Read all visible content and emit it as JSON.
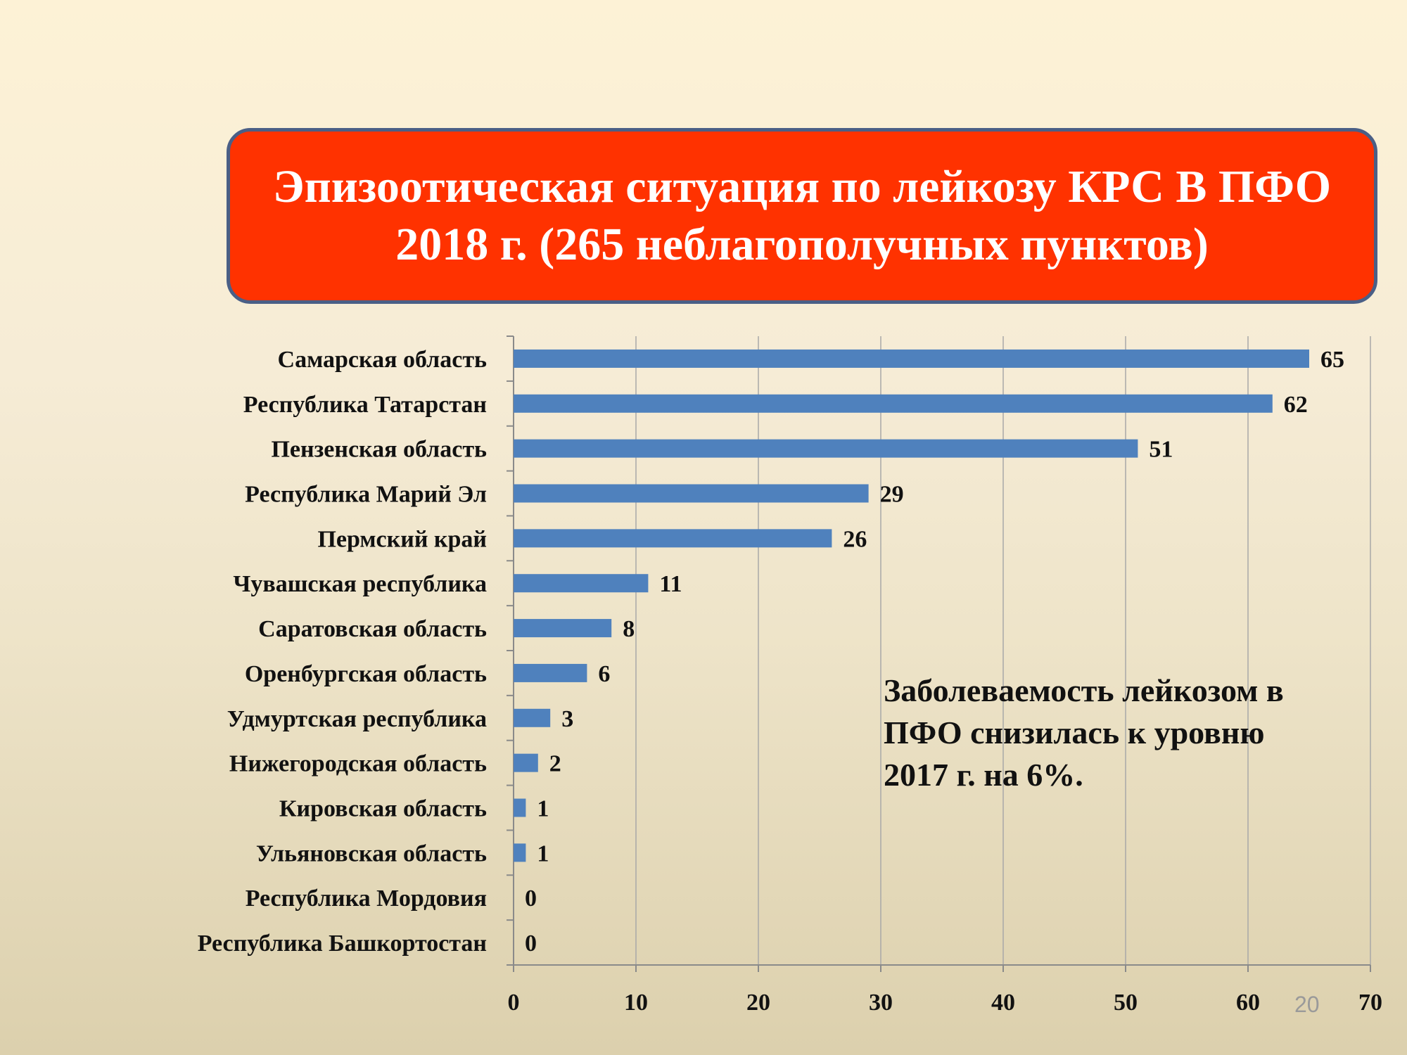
{
  "slide": {
    "title_lines": [
      "Эпизоотическая ситуация по лейкозу КРС В ПФО",
      "2018 г. (265 неблагополучных пунктов)"
    ],
    "note_lines": [
      "Заболеваемость лейкозом в",
      "ПФО снизилась к уровню",
      "2017 г. на 6%."
    ],
    "page_number": "20",
    "title_bg_color": "#ff3200",
    "bar_color": "#4f81bd"
  },
  "chart_data": {
    "type": "bar",
    "orientation": "horizontal",
    "categories": [
      "Самарская область",
      "Республика Татарстан",
      "Пензенская область",
      "Республика Марий Эл",
      "Пермский край",
      "Чувашская республика",
      "Саратовская область",
      "Оренбургская область",
      "Удмуртская республика",
      "Нижегородская область",
      "Кировская область",
      "Ульяновская область",
      "Республика Мордовия",
      "Республика Башкортостан"
    ],
    "values": [
      65,
      62,
      51,
      29,
      26,
      11,
      8,
      6,
      3,
      2,
      1,
      1,
      0,
      0
    ],
    "xlim": [
      0,
      70
    ],
    "xticks": [
      0,
      10,
      20,
      30,
      40,
      50,
      60,
      70
    ],
    "grid": true,
    "data_labels": true
  }
}
